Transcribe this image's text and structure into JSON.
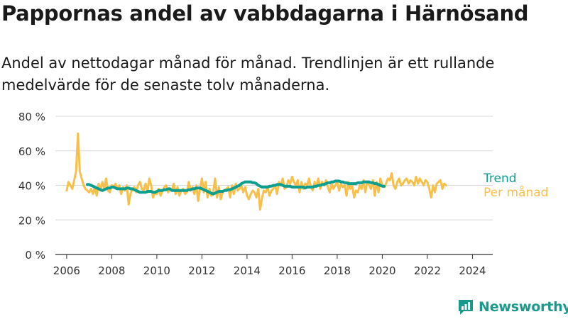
{
  "title": "Pappornas andel av vabbdagarna i Härnösand",
  "subtitle": "Andel av nettodagar månad för månad. Trendlinjen är ett rullande medelvärde för de senaste tolv månaderna.",
  "brand": {
    "name": "Newsworthy"
  },
  "colors": {
    "trend": "#0e9e8f",
    "monthly": "#f7c04a",
    "grid": "#d9d9d9",
    "axis": "#333333"
  },
  "chart_data": {
    "type": "line",
    "title": "Pappornas andel av vabbdagarna i Härnösand",
    "subtitle": "Andel av nettodagar månad för månad. Trendlinjen är ett rullande medelvärde för de senaste tolv månaderna.",
    "xlabel": "",
    "ylabel": "",
    "xlim": [
      2005.5,
      2024.9
    ],
    "ylim": [
      0,
      80
    ],
    "grid": true,
    "legend": "right",
    "y_ticks": [
      "0 %",
      "20 %",
      "40 %",
      "60 %",
      "80 %"
    ],
    "y_tick_values": [
      0,
      20,
      40,
      60,
      80
    ],
    "x_ticks": [
      "2006",
      "2008",
      "2010",
      "2012",
      "2014",
      "2016",
      "2018",
      "2020",
      "2022",
      "2024"
    ],
    "x_tick_values": [
      2006,
      2008,
      2010,
      2012,
      2014,
      2016,
      2018,
      2020,
      2022,
      2024
    ],
    "series": [
      {
        "name": "Per månad",
        "color": "#f7c04a",
        "x_start": 2006.0,
        "x_step": 0.0833333,
        "values": [
          37,
          42,
          40,
          38,
          43,
          48,
          70,
          48,
          44,
          40,
          38,
          37,
          36,
          38,
          35,
          39,
          34,
          41,
          37,
          42,
          38,
          44,
          37,
          36,
          40,
          39,
          41,
          38,
          40,
          35,
          39,
          37,
          40,
          29,
          35,
          38,
          39,
          36,
          40,
          42,
          38,
          37,
          41,
          36,
          44,
          40,
          33,
          36,
          35,
          38,
          34,
          37,
          39,
          40,
          36,
          38,
          37,
          41,
          35,
          39,
          34,
          37,
          38,
          35,
          36,
          42,
          37,
          39,
          35,
          40,
          31,
          38,
          44,
          36,
          42,
          33,
          38,
          34,
          36,
          44,
          33,
          39,
          32,
          36,
          37,
          38,
          39,
          33,
          40,
          35,
          41,
          37,
          38,
          40,
          36,
          39,
          34,
          32,
          35,
          37,
          36,
          33,
          38,
          26,
          33,
          37,
          36,
          39,
          34,
          37,
          38,
          40,
          35,
          42,
          40,
          44,
          38,
          39,
          43,
          41,
          45,
          42,
          40,
          43,
          36,
          42,
          38,
          41,
          40,
          44,
          39,
          37,
          42,
          40,
          44,
          38,
          42,
          40,
          43,
          39,
          36,
          41,
          38,
          40,
          42,
          37,
          41,
          39,
          40,
          34,
          42,
          38,
          40,
          33,
          37,
          36,
          40,
          38,
          43,
          36,
          42,
          40,
          38,
          43,
          34,
          42,
          36,
          44,
          40,
          39,
          41,
          44,
          43,
          47,
          40,
          38,
          42,
          44,
          40,
          41,
          43,
          44,
          41,
          43,
          42,
          40,
          45,
          41,
          44,
          42,
          40,
          43,
          42,
          38,
          33,
          40,
          36,
          41,
          42,
          43,
          38,
          41,
          40
        ]
      },
      {
        "name": "Trend",
        "color": "#0e9e8f",
        "x_start": 2006.9167,
        "x_step": 0.0833333,
        "values": [
          40.5,
          40.5,
          40.0,
          39.5,
          39.0,
          38.5,
          38.0,
          37.5,
          37.0,
          37.5,
          38.0,
          38.5,
          38.5,
          39.0,
          39.0,
          38.5,
          38.0,
          38.0,
          38.0,
          38.0,
          38.0,
          38.5,
          38.5,
          38.0,
          38.0,
          37.5,
          37.0,
          36.5,
          36.0,
          36.0,
          36.0,
          36.0,
          36.5,
          36.5,
          36.5,
          36.0,
          36.0,
          36.5,
          37.0,
          37.0,
          37.0,
          37.5,
          37.5,
          38.0,
          38.0,
          37.0,
          37.0,
          37.0,
          37.0,
          37.0,
          37.0,
          37.0,
          37.0,
          37.0,
          37.5,
          37.5,
          38.0,
          38.0,
          38.5,
          38.5,
          38.5,
          38.0,
          37.5,
          37.0,
          36.5,
          36.0,
          35.5,
          35.0,
          35.5,
          36.0,
          36.5,
          36.5,
          36.5,
          37.0,
          37.0,
          37.5,
          37.5,
          38.0,
          38.5,
          39.0,
          39.5,
          40.0,
          41.0,
          41.5,
          42.0,
          42.0,
          42.0,
          42.0,
          41.5,
          41.5,
          41.0,
          40.0,
          39.5,
          39.0,
          39.0,
          39.0,
          39.0,
          39.5,
          39.5,
          40.0,
          40.0,
          40.5,
          40.5,
          40.5,
          40.0,
          39.5,
          39.5,
          39.5,
          39.5,
          39.0,
          39.0,
          39.0,
          39.0,
          39.0,
          39.0,
          39.0,
          38.5,
          39.0,
          39.0,
          39.0,
          39.0,
          39.5,
          39.5,
          40.0,
          40.0,
          40.5,
          40.5,
          41.0,
          41.5,
          41.5,
          42.0,
          42.0,
          42.5,
          42.5,
          42.5,
          42.0,
          42.0,
          41.5,
          41.5,
          41.0,
          41.0,
          41.0,
          41.0,
          41.0,
          41.5,
          41.5,
          41.5,
          42.0,
          42.0,
          42.0,
          42.0,
          41.5,
          41.5,
          41.0,
          41.0,
          40.5,
          40.0,
          39.5,
          39.5
        ]
      }
    ],
    "legend_labels": {
      "trend": "Trend",
      "monthly": "Per månad"
    }
  }
}
